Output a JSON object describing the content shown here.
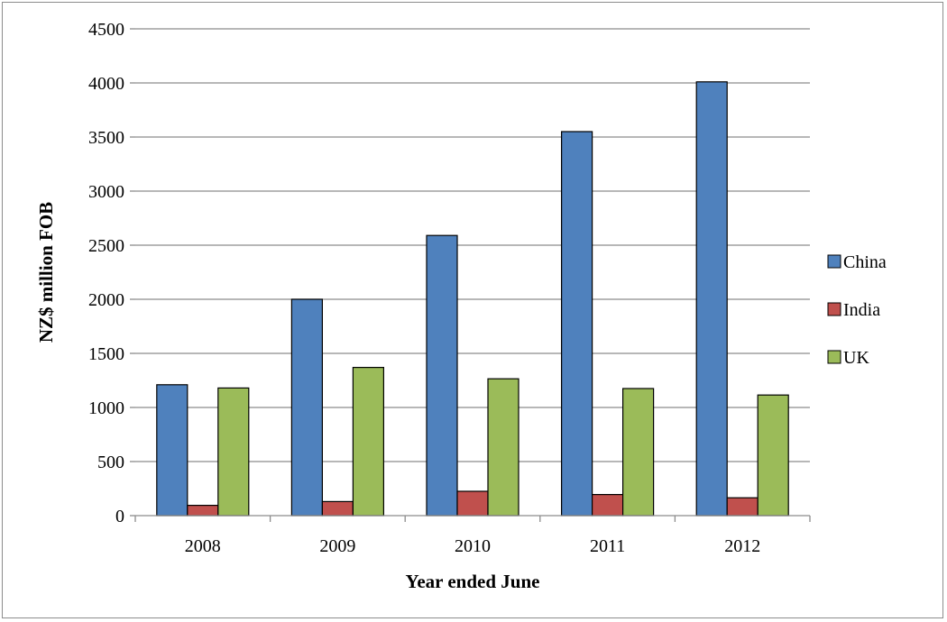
{
  "chart_data": {
    "type": "bar",
    "title": "",
    "xlabel": "Year ended June",
    "ylabel": "NZ$ million FOB",
    "categories": [
      "2008",
      "2009",
      "2010",
      "2011",
      "2012"
    ],
    "series": [
      {
        "name": "China",
        "color": "#4f81bd",
        "values": [
          1210,
          2000,
          2590,
          3550,
          4010
        ]
      },
      {
        "name": "India",
        "color": "#c0504d",
        "values": [
          95,
          130,
          225,
          195,
          165
        ]
      },
      {
        "name": "UK",
        "color": "#9bbb59",
        "values": [
          1180,
          1370,
          1265,
          1175,
          1115
        ]
      }
    ],
    "ylim": [
      0,
      4500
    ],
    "yticks": [
      0,
      500,
      1000,
      1500,
      2000,
      2500,
      3000,
      3500,
      4000,
      4500
    ],
    "grid": true,
    "legend_position": "right"
  }
}
